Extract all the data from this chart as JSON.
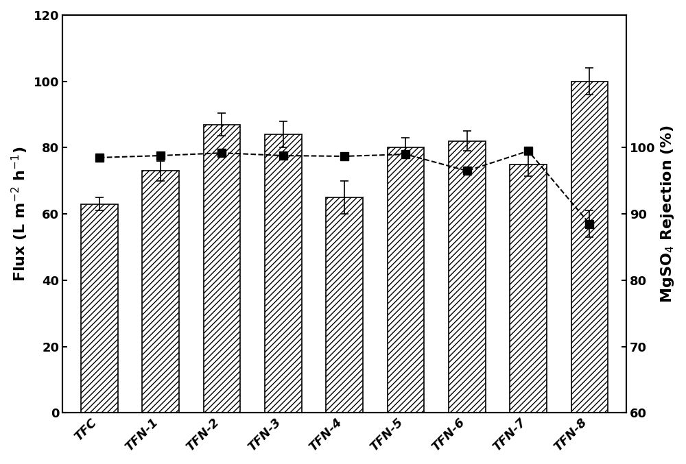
{
  "categories": [
    "TFC",
    "TFN-1",
    "TFN-2",
    "TFN-3",
    "TFN-4",
    "TFN-5",
    "TFN-6",
    "TFN-7",
    "TFN-8"
  ],
  "flux_values": [
    63,
    73,
    87,
    84,
    65,
    80,
    82,
    75,
    100
  ],
  "flux_errors": [
    2,
    3,
    3.5,
    4,
    5,
    3,
    3,
    3.5,
    4
  ],
  "rejection_values": [
    98.5,
    98.8,
    99.2,
    98.8,
    98.7,
    99.0,
    96.5,
    99.5,
    88.5
  ],
  "rejection_errors": [
    0.3,
    0.3,
    0.5,
    0.5,
    0.4,
    0.3,
    0.5,
    0.4,
    2.0
  ],
  "flux_ylim": [
    0,
    120
  ],
  "flux_yticks": [
    0,
    20,
    40,
    60,
    80,
    100,
    120
  ],
  "rejection_ylim": [
    60,
    120
  ],
  "rejection_yticks": [
    60,
    70,
    80,
    90,
    100
  ],
  "xlabel": "",
  "ylabel_left": "Flux (L m$^{-2}$ h$^{-1}$)",
  "ylabel_right": "MgSO$_4$ Rejection (%)",
  "hatch_pattern": "////",
  "bar_color": "white",
  "bar_edgecolor": "black",
  "line_color": "black",
  "marker": "s",
  "markersize": 8,
  "linewidth": 1.5,
  "linestyle": "--",
  "background_color": "white",
  "figsize": [
    10.0,
    6.77
  ],
  "dpi": 100
}
